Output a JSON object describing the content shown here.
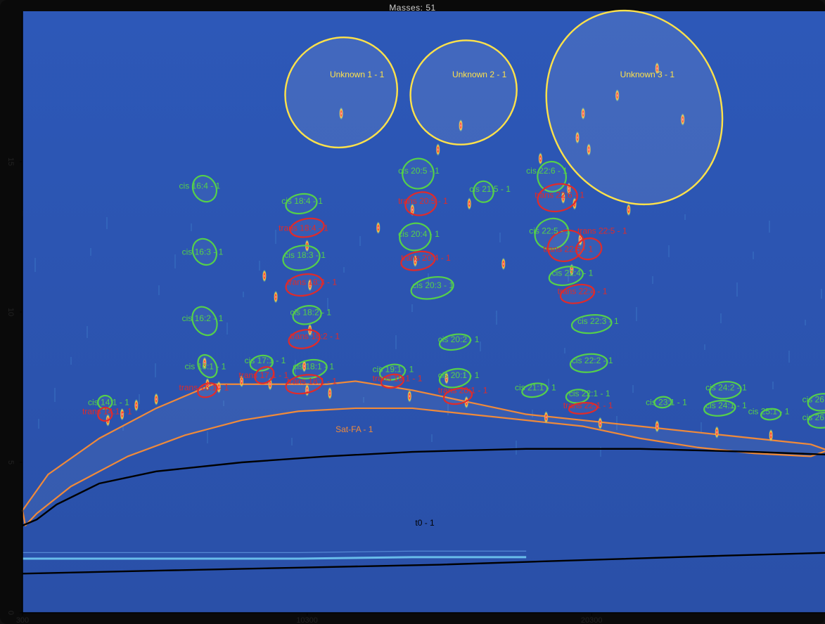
{
  "title": "Masses: 51",
  "chart_data": {
    "type": "scatter",
    "xlim": [
      300,
      28500
    ],
    "ylim": [
      0,
      20
    ],
    "x_ticks": [
      300,
      10300,
      20300
    ],
    "y_ticks": [
      0,
      5,
      10,
      15
    ],
    "colors": {
      "background": "#2d55b0",
      "green": "#55d04a",
      "red": "#e02a2a",
      "yellow": "#ffe24a",
      "orange": "#f08a3a",
      "black": "#000000"
    },
    "regions": [
      {
        "label": "Unknown 1 - 1",
        "color": "yellow",
        "cx": 11500,
        "cy": 17.3,
        "rx": 2000,
        "ry": 1.8,
        "rot": -35
      },
      {
        "label": "Unknown 2 - 1",
        "color": "yellow",
        "cx": 15800,
        "cy": 17.3,
        "rx": 1900,
        "ry": 1.7,
        "rot": -35
      },
      {
        "label": "Unknown 3 - 1",
        "color": "yellow",
        "cx": 21800,
        "cy": 16.8,
        "rx": 3000,
        "ry": 3.3,
        "rot": -25
      },
      {
        "label": "cis 16:4 - 1",
        "color": "green",
        "cx": 6700,
        "cy": 14.1,
        "rx": 400,
        "ry": 0.45,
        "rot": -30
      },
      {
        "label": "cis 16:3 - 1",
        "color": "green",
        "cx": 6700,
        "cy": 12.0,
        "rx": 400,
        "ry": 0.45,
        "rot": -30
      },
      {
        "label": "cis 16:2 - 1",
        "color": "green",
        "cx": 6700,
        "cy": 9.7,
        "rx": 400,
        "ry": 0.5,
        "rot": -30
      },
      {
        "label": "cis 16:1 - 1",
        "color": "green",
        "cx": 6800,
        "cy": 8.2,
        "rx": 300,
        "ry": 0.4,
        "rot": -30
      },
      {
        "label": "trans 16:1 - 1",
        "color": "red",
        "cx": 6800,
        "cy": 7.4,
        "rx": 350,
        "ry": 0.22,
        "rot": -20
      },
      {
        "label": "cis 18:4 - 1",
        "color": "green",
        "cx": 10100,
        "cy": 13.6,
        "rx": 550,
        "ry": 0.32,
        "rot": -10
      },
      {
        "label": "trans 18:4 - 1",
        "color": "red",
        "cx": 10300,
        "cy": 12.8,
        "rx": 600,
        "ry": 0.3,
        "rot": -10
      },
      {
        "label": "cis 18:3 - 1",
        "color": "green",
        "cx": 10100,
        "cy": 11.8,
        "rx": 650,
        "ry": 0.4,
        "rot": -10
      },
      {
        "label": "trans 18:3 - 1",
        "color": "red",
        "cx": 10200,
        "cy": 10.9,
        "rx": 650,
        "ry": 0.35,
        "rot": -10
      },
      {
        "label": "cis 18:2 - 1",
        "color": "green",
        "cx": 10300,
        "cy": 9.9,
        "rx": 500,
        "ry": 0.3,
        "rot": -10
      },
      {
        "label": "trans 18:2 - 1",
        "color": "red",
        "cx": 10200,
        "cy": 9.1,
        "rx": 550,
        "ry": 0.3,
        "rot": -10
      },
      {
        "label": "cis 18:1 - 1",
        "color": "green",
        "cx": 10400,
        "cy": 8.1,
        "rx": 600,
        "ry": 0.3,
        "rot": -10
      },
      {
        "label": "trans 18:1 - 1",
        "color": "red",
        "cx": 10200,
        "cy": 7.6,
        "rx": 650,
        "ry": 0.3,
        "rot": -10
      },
      {
        "label": "cis 17:1 - 1",
        "color": "green",
        "cx": 8700,
        "cy": 8.3,
        "rx": 400,
        "ry": 0.25,
        "rot": -10
      },
      {
        "label": "trans 17:1 - 1",
        "color": "red",
        "cx": 8800,
        "cy": 7.9,
        "rx": 350,
        "ry": 0.25,
        "rot": -30
      },
      {
        "label": "cis 14:1 - 1",
        "color": "green",
        "cx": 3200,
        "cy": 7.0,
        "rx": 250,
        "ry": 0.22,
        "rot": -10
      },
      {
        "label": "trans 14:1 - 1",
        "color": "red",
        "cx": 3200,
        "cy": 6.6,
        "rx": 250,
        "ry": 0.22,
        "rot": -10
      },
      {
        "label": "cis 19:1 - 1",
        "color": "green",
        "cx": 13300,
        "cy": 8.0,
        "rx": 450,
        "ry": 0.25,
        "rot": -10
      },
      {
        "label": "trans 19:1 - 1",
        "color": "red",
        "cx": 13300,
        "cy": 7.7,
        "rx": 400,
        "ry": 0.22,
        "rot": -10
      },
      {
        "label": "cis 20:5 - 1",
        "color": "green",
        "cx": 14200,
        "cy": 14.6,
        "rx": 550,
        "ry": 0.5,
        "rot": -10
      },
      {
        "label": "trans 20:5 - 1",
        "color": "red",
        "cx": 14300,
        "cy": 13.6,
        "rx": 550,
        "ry": 0.38,
        "rot": -10
      },
      {
        "label": "cis 20:4 - 1",
        "color": "green",
        "cx": 14100,
        "cy": 12.5,
        "rx": 550,
        "ry": 0.45,
        "rot": -10
      },
      {
        "label": "trans 20:4 - 1",
        "color": "red",
        "cx": 14200,
        "cy": 11.7,
        "rx": 600,
        "ry": 0.3,
        "rot": -10
      },
      {
        "label": "cis 20:3 - 1",
        "color": "green",
        "cx": 14700,
        "cy": 10.8,
        "rx": 750,
        "ry": 0.35,
        "rot": -10
      },
      {
        "label": "cis 20:2 - 1",
        "color": "green",
        "cx": 15500,
        "cy": 9.0,
        "rx": 550,
        "ry": 0.25,
        "rot": -10
      },
      {
        "label": "cis 20:1 - 1",
        "color": "green",
        "cx": 15500,
        "cy": 7.8,
        "rx": 550,
        "ry": 0.3,
        "rot": -10
      },
      {
        "label": "trans 20:1 - 1",
        "color": "red",
        "cx": 15600,
        "cy": 7.2,
        "rx": 500,
        "ry": 0.25,
        "rot": -10
      },
      {
        "label": "cis 21:5 - 1",
        "color": "green",
        "cx": 16500,
        "cy": 14.0,
        "rx": 350,
        "ry": 0.35,
        "rot": -10
      },
      {
        "label": "cis 21:1 - 1",
        "color": "green",
        "cx": 18300,
        "cy": 7.4,
        "rx": 450,
        "ry": 0.22,
        "rot": -10
      },
      {
        "label": "cis 22:6 - 1",
        "color": "green",
        "cx": 18900,
        "cy": 14.5,
        "rx": 500,
        "ry": 0.5,
        "rot": -10
      },
      {
        "label": "trans 22:6 - 1",
        "color": "red",
        "cx": 19100,
        "cy": 13.8,
        "rx": 700,
        "ry": 0.45,
        "rot": -10
      },
      {
        "label": "cis 22:5 - 1",
        "color": "green",
        "cx": 18900,
        "cy": 12.6,
        "rx": 600,
        "ry": 0.5,
        "rot": -20
      },
      {
        "label": "trans 22:5 - 1",
        "color": "red",
        "cx": 19400,
        "cy": 12.2,
        "rx": 650,
        "ry": 0.5,
        "rot": -20
      },
      {
        "label": "trans 22:5b - 1",
        "color": "red",
        "cx": 20200,
        "cy": 12.1,
        "rx": 450,
        "ry": 0.35,
        "rot": -10
      },
      {
        "label": "cis 22:4 - 1",
        "color": "green",
        "cx": 19400,
        "cy": 11.2,
        "rx": 600,
        "ry": 0.3,
        "rot": -10
      },
      {
        "label": "trans 22:4 - 1",
        "color": "red",
        "cx": 19800,
        "cy": 10.6,
        "rx": 600,
        "ry": 0.3,
        "rot": -10
      },
      {
        "label": "cis 22:3 - 1",
        "color": "green",
        "cx": 20300,
        "cy": 9.6,
        "rx": 700,
        "ry": 0.3,
        "rot": -5
      },
      {
        "label": "cis 22:2 - 1",
        "color": "green",
        "cx": 20200,
        "cy": 8.3,
        "rx": 650,
        "ry": 0.3,
        "rot": -5
      },
      {
        "label": "cis 22:1 - 1",
        "color": "green",
        "cx": 19800,
        "cy": 7.2,
        "rx": 400,
        "ry": 0.22,
        "rot": -5
      },
      {
        "label": "trans 22:1 - 1",
        "color": "red",
        "cx": 20000,
        "cy": 6.8,
        "rx": 500,
        "ry": 0.18,
        "rot": -5
      },
      {
        "label": "cis 23:1 - 1",
        "color": "green",
        "cx": 22800,
        "cy": 7.0,
        "rx": 300,
        "ry": 0.18,
        "rot": -5
      },
      {
        "label": "cis 24:2 - 1",
        "color": "green",
        "cx": 25000,
        "cy": 7.4,
        "rx": 550,
        "ry": 0.28,
        "rot": -5
      },
      {
        "label": "cis 24:1 - 1",
        "color": "green",
        "cx": 24800,
        "cy": 6.8,
        "rx": 550,
        "ry": 0.25,
        "rot": -5
      },
      {
        "label": "cis 25:1 - 1",
        "color": "green",
        "cx": 26600,
        "cy": 6.6,
        "rx": 350,
        "ry": 0.18,
        "rot": -5
      },
      {
        "label": "cis 26:2 - 1",
        "color": "green",
        "cx": 28400,
        "cy": 7.0,
        "rx": 500,
        "ry": 0.28,
        "rot": -5
      },
      {
        "label": "cis 26:1 - 1",
        "color": "green",
        "cx": 28400,
        "cy": 6.4,
        "rx": 500,
        "ry": 0.25,
        "rot": -5
      }
    ],
    "visible_labels": [
      {
        "text": "Unknown 1 - 1",
        "x": 11100,
        "y": 17.8,
        "color": "yellow"
      },
      {
        "text": "Unknown 2 - 1",
        "x": 15400,
        "y": 17.8,
        "color": "yellow"
      },
      {
        "text": "Unknown 3 - 1",
        "x": 21300,
        "y": 17.8,
        "color": "yellow"
      },
      {
        "text": "cis 16:4 - 1",
        "x": 5800,
        "y": 14.1,
        "color": "green"
      },
      {
        "text": "cis 16:3 - 1",
        "x": 5900,
        "y": 11.9,
        "color": "green"
      },
      {
        "text": "cis 16:2 - 1",
        "x": 5900,
        "y": 9.7,
        "color": "green"
      },
      {
        "text": "cis 16:1 - 1",
        "x": 6000,
        "y": 8.1,
        "color": "green"
      },
      {
        "text": "trans 16:1 - 1",
        "x": 5800,
        "y": 7.4,
        "color": "red"
      },
      {
        "text": "cis 18:4 - 1",
        "x": 9400,
        "y": 13.6,
        "color": "green"
      },
      {
        "text": "trans 18:4 - 1",
        "x": 9300,
        "y": 12.7,
        "color": "red"
      },
      {
        "text": "cis 18:3 - 1",
        "x": 9500,
        "y": 11.8,
        "color": "green"
      },
      {
        "text": "trans 18:3 - 1",
        "x": 9600,
        "y": 10.9,
        "color": "red"
      },
      {
        "text": "cis 18:2 - 1",
        "x": 9700,
        "y": 9.9,
        "color": "green"
      },
      {
        "text": "trans 18:2 - 1",
        "x": 9700,
        "y": 9.1,
        "color": "red"
      },
      {
        "text": "cis 18:1 - 1",
        "x": 9800,
        "y": 8.1,
        "color": "green"
      },
      {
        "text": "trans 18:1 - 1",
        "x": 9600,
        "y": 7.6,
        "color": "red"
      },
      {
        "text": "cis 17:1 - 1",
        "x": 8100,
        "y": 8.3,
        "color": "green"
      },
      {
        "text": "trans 17:1 - 1",
        "x": 7900,
        "y": 7.8,
        "color": "red"
      },
      {
        "text": "cis 14:1 - 1",
        "x": 2600,
        "y": 6.9,
        "color": "green"
      },
      {
        "text": "trans 14:1 - 1",
        "x": 2400,
        "y": 6.6,
        "color": "red"
      },
      {
        "text": "cis 19:1 - 1",
        "x": 12600,
        "y": 8.0,
        "color": "green"
      },
      {
        "text": "trans 19:1 - 1",
        "x": 12600,
        "y": 7.7,
        "color": "red"
      },
      {
        "text": "cis 20:5 - 1",
        "x": 13500,
        "y": 14.6,
        "color": "green"
      },
      {
        "text": "trans 20:5 - 1",
        "x": 13500,
        "y": 13.6,
        "color": "red"
      },
      {
        "text": "cis 20:4 - 1",
        "x": 13500,
        "y": 12.5,
        "color": "green"
      },
      {
        "text": "trans 20:4 - 1",
        "x": 13600,
        "y": 11.7,
        "color": "red"
      },
      {
        "text": "cis 20:3 - 1",
        "x": 14000,
        "y": 10.8,
        "color": "green"
      },
      {
        "text": "cis 20:2 - 1",
        "x": 14900,
        "y": 9.0,
        "color": "green"
      },
      {
        "text": "cis 20:1 - 1",
        "x": 14900,
        "y": 7.8,
        "color": "green"
      },
      {
        "text": "trans 20:1 - 1",
        "x": 14900,
        "y": 7.3,
        "color": "red"
      },
      {
        "text": "cis 21:5 - 1",
        "x": 16000,
        "y": 14.0,
        "color": "green"
      },
      {
        "text": "cis 21:1 - 1",
        "x": 17600,
        "y": 7.4,
        "color": "green"
      },
      {
        "text": "cis 22:6 - 1",
        "x": 18000,
        "y": 14.6,
        "color": "green"
      },
      {
        "text": "trans 22:6 - 1",
        "x": 18300,
        "y": 13.8,
        "color": "red"
      },
      {
        "text": "cis 22:5 - 1",
        "x": 18100,
        "y": 12.6,
        "color": "green"
      },
      {
        "text": "trans 22:5 - 1",
        "x": 18600,
        "y": 12.0,
        "color": "red"
      },
      {
        "text": "trans 22:5 - 1",
        "x": 19800,
        "y": 12.6,
        "color": "red"
      },
      {
        "text": "cis 22:4 - 1",
        "x": 18900,
        "y": 11.2,
        "color": "green"
      },
      {
        "text": "trans 22:4 - 1",
        "x": 19100,
        "y": 10.6,
        "color": "red"
      },
      {
        "text": "cis 22:3 - 1",
        "x": 19800,
        "y": 9.6,
        "color": "green"
      },
      {
        "text": "cis 22:2 - 1",
        "x": 19600,
        "y": 8.3,
        "color": "green"
      },
      {
        "text": "cis 22:1 - 1",
        "x": 19500,
        "y": 7.2,
        "color": "green"
      },
      {
        "text": "trans 22:1 - 1",
        "x": 19300,
        "y": 6.8,
        "color": "red"
      },
      {
        "text": "cis 23:1 - 1",
        "x": 22200,
        "y": 6.9,
        "color": "green"
      },
      {
        "text": "cis 24:2 - 1",
        "x": 24300,
        "y": 7.4,
        "color": "green"
      },
      {
        "text": "cis 24:1 - 1",
        "x": 24300,
        "y": 6.8,
        "color": "green"
      },
      {
        "text": "cis 25:1 - 1",
        "x": 25800,
        "y": 6.6,
        "color": "green"
      },
      {
        "text": "cis 26:2 - 1",
        "x": 27700,
        "y": 7.0,
        "color": "green"
      },
      {
        "text": "cis 26:1 - 1",
        "x": 27700,
        "y": 6.4,
        "color": "green"
      },
      {
        "text": "Sat-FA - 1",
        "x": 11300,
        "y": 6.0,
        "color": "orange"
      },
      {
        "text": "t0 - 1",
        "x": 14100,
        "y": 2.9,
        "color": "black"
      }
    ],
    "satfa_outline": [
      [
        300,
        3.4
      ],
      [
        1200,
        4.6
      ],
      [
        3000,
        5.8
      ],
      [
        5000,
        6.8
      ],
      [
        7000,
        7.6
      ],
      [
        9000,
        7.6
      ],
      [
        11000,
        7.6
      ],
      [
        12000,
        7.7
      ],
      [
        14000,
        7.4
      ],
      [
        16000,
        7.0
      ],
      [
        18000,
        6.6
      ],
      [
        20000,
        6.4
      ],
      [
        22000,
        6.2
      ],
      [
        24000,
        6.0
      ],
      [
        26000,
        5.8
      ],
      [
        28000,
        5.6
      ],
      [
        28600,
        5.4
      ],
      [
        28000,
        5.2
      ],
      [
        26000,
        5.3
      ],
      [
        24000,
        5.5
      ],
      [
        22000,
        5.8
      ],
      [
        20000,
        6.2
      ],
      [
        18000,
        6.4
      ],
      [
        16000,
        6.6
      ],
      [
        14000,
        6.8
      ],
      [
        12000,
        6.8
      ],
      [
        10000,
        6.7
      ],
      [
        8000,
        6.4
      ],
      [
        6000,
        5.9
      ],
      [
        4000,
        5.2
      ],
      [
        2000,
        4.2
      ],
      [
        800,
        3.3
      ],
      [
        400,
        2.9
      ],
      [
        300,
        3.4
      ]
    ],
    "t0_upper": [
      [
        300,
        2.9
      ],
      [
        800,
        3.1
      ],
      [
        1500,
        3.6
      ],
      [
        3000,
        4.3
      ],
      [
        5000,
        4.7
      ],
      [
        8000,
        5.0
      ],
      [
        11000,
        5.2
      ],
      [
        14000,
        5.35
      ],
      [
        18000,
        5.45
      ],
      [
        22000,
        5.45
      ],
      [
        26000,
        5.35
      ],
      [
        28800,
        5.25
      ]
    ],
    "t0_lower": [
      [
        300,
        1.3
      ],
      [
        5000,
        1.4
      ],
      [
        10000,
        1.5
      ],
      [
        15000,
        1.6
      ],
      [
        20000,
        1.75
      ],
      [
        25000,
        1.9
      ],
      [
        28800,
        2.0
      ]
    ],
    "bright_band": [
      [
        300,
        1.8
      ],
      [
        4000,
        1.8
      ],
      [
        10000,
        1.8
      ],
      [
        14000,
        1.85
      ],
      [
        18000,
        1.85
      ]
    ],
    "peaks": [
      [
        3300,
        6.4
      ],
      [
        3800,
        6.6
      ],
      [
        4300,
        6.9
      ],
      [
        5000,
        7.1
      ],
      [
        6800,
        7.6
      ],
      [
        7200,
        7.5
      ],
      [
        8000,
        7.7
      ],
      [
        9000,
        7.6
      ],
      [
        10300,
        7.4
      ],
      [
        11100,
        7.3
      ],
      [
        13900,
        7.2
      ],
      [
        15900,
        7.0
      ],
      [
        18700,
        6.5
      ],
      [
        20600,
        6.3
      ],
      [
        22600,
        6.2
      ],
      [
        24700,
        6.0
      ],
      [
        26600,
        5.9
      ],
      [
        6700,
        8.3
      ],
      [
        10200,
        8.2
      ],
      [
        10300,
        12.2
      ],
      [
        10400,
        10.9
      ],
      [
        10400,
        9.4
      ],
      [
        14000,
        13.4
      ],
      [
        14100,
        11.7
      ],
      [
        15200,
        7.8
      ],
      [
        19300,
        13.8
      ],
      [
        19500,
        14.1
      ],
      [
        19700,
        13.6
      ],
      [
        19900,
        12.4
      ],
      [
        19600,
        11.4
      ],
      [
        20200,
        15.4
      ],
      [
        20000,
        16.6
      ],
      [
        19800,
        15.8
      ],
      [
        21200,
        17.2
      ],
      [
        22600,
        18.1
      ],
      [
        23500,
        16.4
      ],
      [
        18500,
        15.1
      ],
      [
        15700,
        16.2
      ],
      [
        11500,
        16.6
      ],
      [
        14900,
        15.4
      ],
      [
        16000,
        13.6
      ],
      [
        9200,
        10.5
      ],
      [
        8800,
        11.2
      ],
      [
        12800,
        12.8
      ],
      [
        17200,
        11.6
      ],
      [
        21600,
        13.4
      ]
    ]
  }
}
